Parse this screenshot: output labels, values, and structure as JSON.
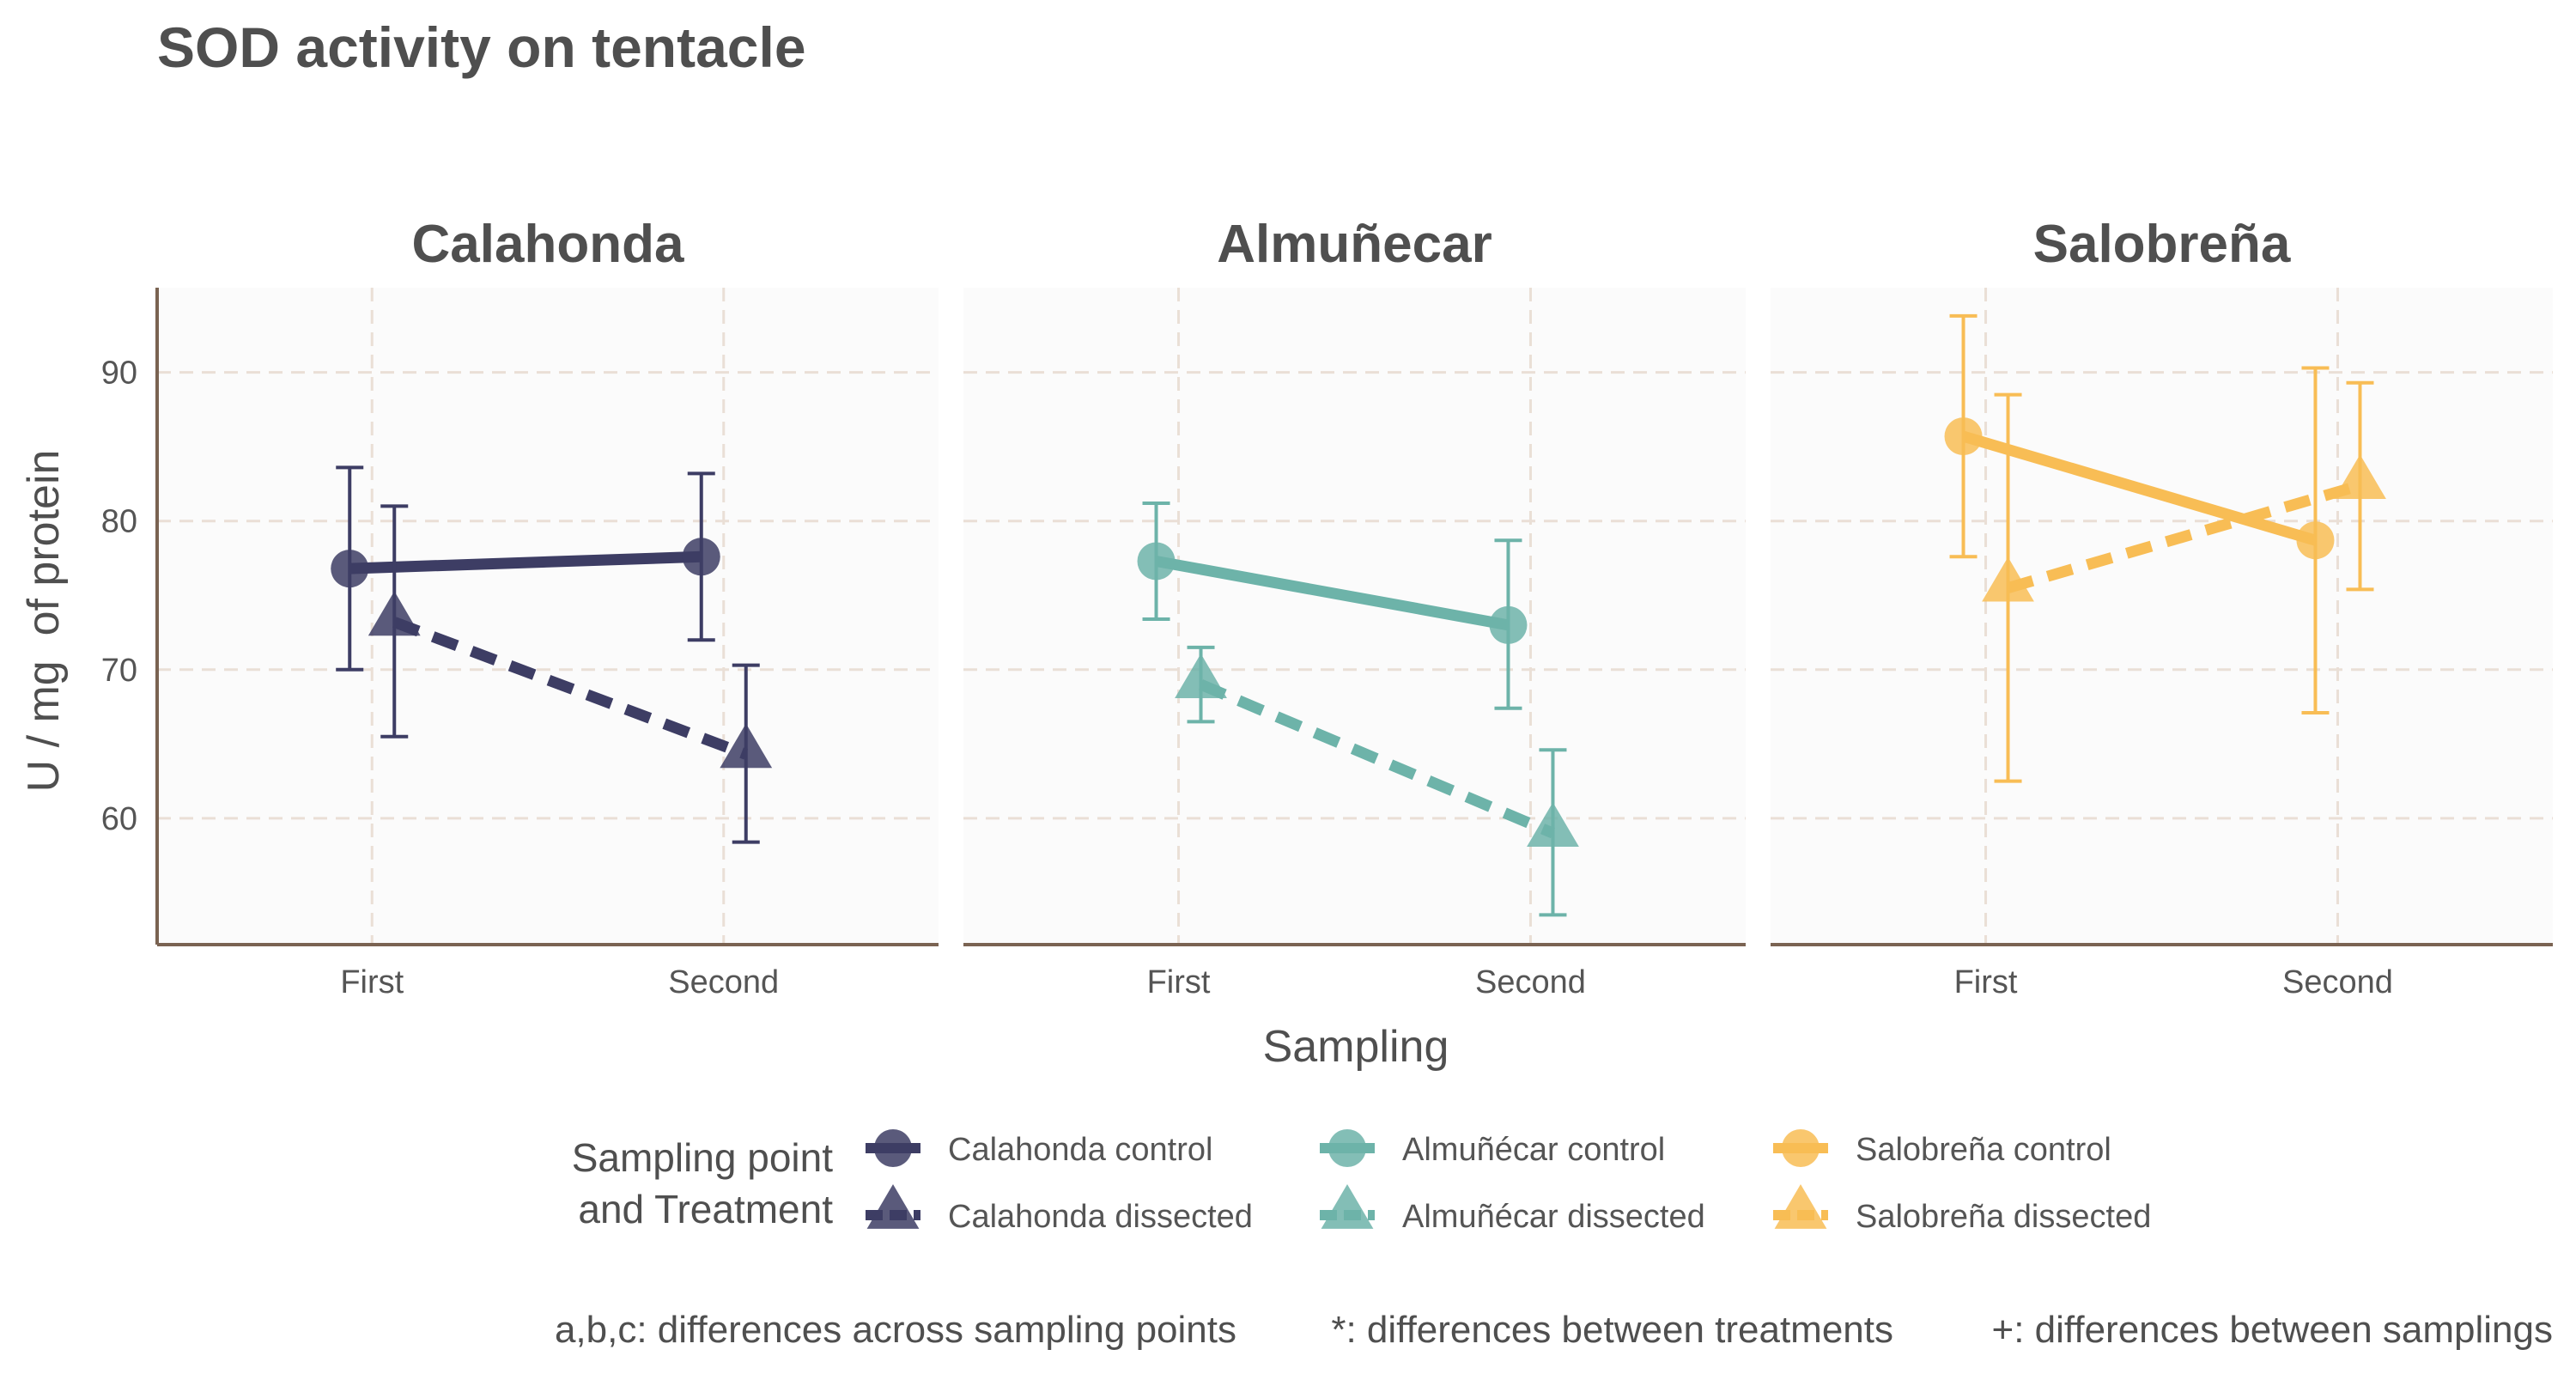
{
  "chart_data": {
    "type": "line",
    "title": "SOD activity on tentacle",
    "xlabel": "Sampling",
    "ylabel": "U / mg  of protein",
    "categories": [
      "First",
      "Second"
    ],
    "y_ticks": [
      60,
      70,
      80,
      90
    ],
    "ylim": [
      51.5,
      95.7
    ],
    "grid": true,
    "legend": {
      "title_line1": "Sampling point",
      "title_line2": "and Treatment",
      "position": "bottom"
    },
    "panels": [
      {
        "title": "Calahonda",
        "color": "#3d3d64",
        "series": [
          {
            "name": "Calahonda control",
            "treatment": "control",
            "values": [
              76.8,
              77.6
            ],
            "lower": [
              70.0,
              72.0
            ],
            "upper": [
              83.6,
              83.2
            ]
          },
          {
            "name": "Calahonda dissected",
            "treatment": "dissected",
            "values": [
              73.2,
              64.3
            ],
            "lower": [
              65.5,
              58.4
            ],
            "upper": [
              81.0,
              70.3
            ]
          }
        ]
      },
      {
        "title": "Almuñecar",
        "color": "#6db3a9",
        "series": [
          {
            "name": "Almuñécar control",
            "treatment": "control",
            "values": [
              77.3,
              73.0
            ],
            "lower": [
              73.4,
              67.4
            ],
            "upper": [
              81.2,
              78.7
            ]
          },
          {
            "name": "Almuñécar dissected",
            "treatment": "dissected",
            "values": [
              69.0,
              59.0
            ],
            "lower": [
              66.5,
              53.5
            ],
            "upper": [
              71.5,
              64.6
            ]
          }
        ]
      },
      {
        "title": "Salobreña",
        "color": "#f8bd55",
        "series": [
          {
            "name": "Salobreña control",
            "treatment": "control",
            "values": [
              85.7,
              78.7
            ],
            "lower": [
              77.6,
              67.1
            ],
            "upper": [
              93.8,
              90.3
            ]
          },
          {
            "name": "Salobreña dissected",
            "treatment": "dissected",
            "values": [
              75.5,
              82.4
            ],
            "lower": [
              62.5,
              75.4
            ],
            "upper": [
              88.5,
              89.3
            ]
          }
        ]
      }
    ],
    "captions": [
      "a,b,c: differences across sampling points",
      "*: differences between treatments",
      "+: differences between samplings"
    ]
  }
}
